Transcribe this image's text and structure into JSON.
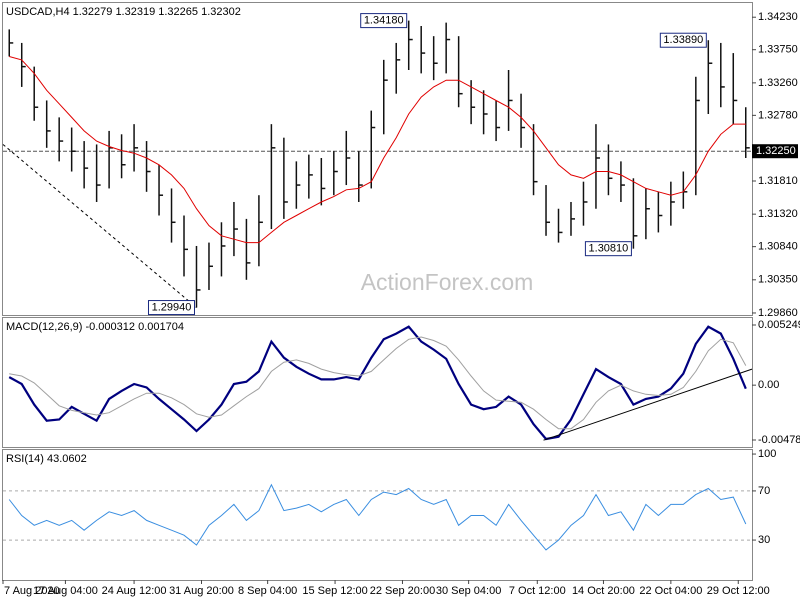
{
  "chart_data": [
    {
      "type": "ohlc",
      "title": "USDCAD,H4 1.32279 1.32319 1.32265 1.32302",
      "watermark": "ActionForex.com",
      "xlim": [
        -0.5,
        59.5
      ],
      "ylim": [
        1.2983,
        1.3444
      ],
      "yticks": [
        {
          "value": 1.3423,
          "label": "1.34230"
        },
        {
          "value": 1.3375,
          "label": "1.33750"
        },
        {
          "value": 1.3326,
          "label": "1.33260"
        },
        {
          "value": 1.3278,
          "label": "1.32780"
        },
        {
          "value": 1.3181,
          "label": "1.31810"
        },
        {
          "value": 1.3132,
          "label": "1.31320"
        },
        {
          "value": 1.3084,
          "label": "1.30840"
        },
        {
          "value": 1.3035,
          "label": "1.30350"
        },
        {
          "value": 1.2986,
          "label": "1.29860"
        }
      ],
      "color": "#111111",
      "high": [
        1.3405,
        1.3385,
        1.335,
        1.33,
        1.3275,
        1.326,
        1.324,
        1.3235,
        1.3255,
        1.325,
        1.3265,
        1.324,
        1.3205,
        1.317,
        1.313,
        1.3085,
        1.309,
        1.312,
        1.315,
        1.3125,
        1.316,
        1.3265,
        1.3245,
        1.321,
        1.322,
        1.3215,
        1.3225,
        1.3255,
        1.3225,
        1.3285,
        1.336,
        1.3385,
        1.3418,
        1.341,
        1.3395,
        1.3415,
        1.3395,
        1.333,
        1.3315,
        1.33,
        1.3345,
        1.331,
        1.3265,
        1.3175,
        1.314,
        1.315,
        1.318,
        1.3265,
        1.3235,
        1.321,
        1.3185,
        1.317,
        1.3165,
        1.318,
        1.3195,
        1.3335,
        1.3389,
        1.3385,
        1.337,
        1.329
      ],
      "low": [
        1.3365,
        1.332,
        1.327,
        1.323,
        1.321,
        1.3195,
        1.317,
        1.315,
        1.317,
        1.3185,
        1.3195,
        1.3165,
        1.313,
        1.309,
        1.304,
        1.2994,
        1.302,
        1.304,
        1.307,
        1.3035,
        1.3055,
        1.311,
        1.3125,
        1.314,
        1.3155,
        1.3145,
        1.316,
        1.3175,
        1.315,
        1.317,
        1.325,
        1.331,
        1.3345,
        1.334,
        1.333,
        1.334,
        1.329,
        1.3265,
        1.325,
        1.324,
        1.3255,
        1.323,
        1.316,
        1.31,
        1.309,
        1.31,
        1.3115,
        1.314,
        1.316,
        1.315,
        1.3081,
        1.3095,
        1.3105,
        1.3115,
        1.314,
        1.316,
        1.328,
        1.329,
        1.3265,
        1.3215
      ],
      "close": [
        1.3385,
        1.335,
        1.329,
        1.3255,
        1.324,
        1.3225,
        1.32,
        1.3175,
        1.323,
        1.3205,
        1.323,
        1.3195,
        1.316,
        1.312,
        1.308,
        1.302,
        1.3055,
        1.3085,
        1.311,
        1.306,
        1.312,
        1.323,
        1.315,
        1.3175,
        1.319,
        1.317,
        1.3195,
        1.3215,
        1.3175,
        1.326,
        1.333,
        1.336,
        1.339,
        1.337,
        1.3355,
        1.339,
        1.331,
        1.329,
        1.328,
        1.326,
        1.33,
        1.326,
        1.318,
        1.312,
        1.3105,
        1.3125,
        1.315,
        1.3215,
        1.3185,
        1.3175,
        1.31,
        1.314,
        1.313,
        1.315,
        1.3165,
        1.33,
        1.3355,
        1.332,
        1.33,
        1.323
      ],
      "ma": {
        "color": "#e00000",
        "values": [
          1.3365,
          1.336,
          1.334,
          1.3315,
          1.3295,
          1.3275,
          1.3255,
          1.324,
          1.3232,
          1.3226,
          1.3222,
          1.3215,
          1.3205,
          1.319,
          1.317,
          1.314,
          1.3115,
          1.31,
          1.3095,
          1.309,
          1.309,
          1.3105,
          1.312,
          1.313,
          1.314,
          1.315,
          1.3158,
          1.3168,
          1.317,
          1.318,
          1.3215,
          1.3245,
          1.328,
          1.3305,
          1.332,
          1.333,
          1.333,
          1.332,
          1.331,
          1.33,
          1.329,
          1.3275,
          1.3255,
          1.323,
          1.3205,
          1.319,
          1.3185,
          1.3195,
          1.3195,
          1.319,
          1.318,
          1.317,
          1.3165,
          1.316,
          1.3165,
          1.319,
          1.3225,
          1.325,
          1.3265,
          1.3265
        ]
      },
      "current": {
        "value": 1.3225,
        "label": "1.32250"
      },
      "trendline": {
        "x": [
          -0.5,
          15
        ],
        "y": [
          1.3235,
          1.2994
        ]
      },
      "annotations": [
        {
          "x": 32,
          "value": 1.3418,
          "label": "1.34180"
        },
        {
          "x": 15,
          "value": 1.2994,
          "label": "1.29940"
        },
        {
          "x": 50,
          "value": 1.3081,
          "label": "1.30810"
        },
        {
          "x": 56,
          "value": 1.3389,
          "label": "1.33890"
        }
      ]
    },
    {
      "type": "macd",
      "title": "MACD(12,26,9) -0.000312 0.001704",
      "xlim": [
        -0.5,
        59.5
      ],
      "ylim": [
        -0.005396,
        0.00586
      ],
      "yticks": [
        0.005249,
        {
          "value": 0,
          "label": "0.00"
        },
        -0.004785
      ],
      "series": [
        {
          "color": "#00007f",
          "values": [
            0.0007,
            0.0001,
            -0.0017,
            -0.0031,
            -0.003,
            -0.0019,
            -0.0025,
            -0.0031,
            -0.0012,
            -0.0005,
            0.0001,
            -0.0002,
            -0.0012,
            -0.0021,
            -0.003,
            -0.004,
            -0.003,
            -0.0017,
            0.0001,
            0.0003,
            0.0012,
            0.0038,
            0.0024,
            0.0016,
            0.001,
            0.0005,
            0.0005,
            0.0007,
            0.0005,
            0.0024,
            0.004,
            0.0045,
            0.0051,
            0.0038,
            0.0031,
            0.0023,
            0.0001,
            -0.0017,
            -0.0021,
            -0.0019,
            -0.001,
            -0.0017,
            -0.0034,
            -0.0047,
            -0.0045,
            -0.003,
            -0.0008,
            0.0014,
            0.0007,
            0.0001,
            -0.0017,
            -0.0012,
            -0.001,
            -0.0003,
            0.001,
            0.0036,
            0.0051,
            0.0045,
            0.0023,
            -0.000312
          ]
        },
        {
          "color": "#a0a0a0",
          "values": [
            0.001,
            0.0008,
            0.0002,
            -0.0008,
            -0.0018,
            -0.0022,
            -0.0024,
            -0.0026,
            -0.0024,
            -0.0018,
            -0.0012,
            -0.0007,
            -0.0007,
            -0.0011,
            -0.0017,
            -0.0025,
            -0.0028,
            -0.0026,
            -0.0018,
            -0.001,
            -0.0003,
            0.0012,
            0.002,
            0.0022,
            0.0019,
            0.0014,
            0.0011,
            0.0009,
            0.0008,
            0.0012,
            0.0022,
            0.0032,
            0.004,
            0.0042,
            0.0039,
            0.0034,
            0.0022,
            0.0008,
            -0.0005,
            -0.0013,
            -0.0014,
            -0.0015,
            -0.0021,
            -0.003,
            -0.0038,
            -0.0038,
            -0.003,
            -0.0015,
            -0.0005,
            0.0,
            -0.0005,
            -0.0008,
            -0.0009,
            -0.0008,
            -0.0002,
            0.0012,
            0.003,
            0.004,
            0.0037,
            0.001704
          ]
        }
      ],
      "trendline": {
        "x": [
          42.8,
          59.5
        ],
        "y": [
          -0.0048,
          0.0014
        ]
      }
    },
    {
      "type": "rsi",
      "title": "RSI(14) 43.0602",
      "xlim": [
        -0.5,
        59.5
      ],
      "ylim": [
        -2.5,
        103.3
      ],
      "yticks": [
        100,
        70,
        30
      ],
      "levels": [
        70,
        30
      ],
      "xticks": [
        {
          "value": -0.5,
          "label": "7 Aug 2020"
        },
        {
          "value": 4.5,
          "label": "17 Aug 04:00"
        },
        {
          "value": 10,
          "label": "24 Aug 12:00"
        },
        {
          "value": 15.4,
          "label": "31 Aug 20:00"
        },
        {
          "value": 20.7,
          "label": "8 Sep 04:00"
        },
        {
          "value": 26.1,
          "label": "15 Sep 12:00"
        },
        {
          "value": 31.5,
          "label": "22 Sep 20:00"
        },
        {
          "value": 36.8,
          "label": "30 Sep 04:00"
        },
        {
          "value": 42.3,
          "label": "7 Oct 12:00"
        },
        {
          "value": 47.6,
          "label": "14 Oct 20:00"
        },
        {
          "value": 53,
          "label": "22 Oct 04:00"
        },
        {
          "value": 58.4,
          "label": "29 Oct 12:00"
        }
      ],
      "series": [
        {
          "color": "#3a8ee0",
          "values": [
            63,
            50,
            42,
            46,
            42,
            46,
            38,
            46,
            53,
            50,
            54,
            46,
            42,
            38,
            34,
            26,
            42,
            50,
            59,
            46,
            54,
            75,
            54,
            56,
            59,
            53,
            59,
            63,
            50,
            63,
            69,
            67,
            72,
            63,
            59,
            63,
            42,
            50,
            50,
            42,
            59,
            46,
            34,
            22,
            30,
            42,
            50,
            67,
            50,
            53,
            38,
            59,
            50,
            59,
            59,
            67,
            72,
            63,
            65,
            43.0602
          ]
        }
      ]
    }
  ]
}
